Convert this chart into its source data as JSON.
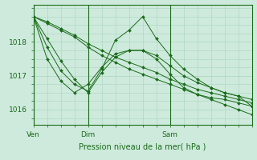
{
  "bg_color": "#ceeadc",
  "grid_color": "#aad4c0",
  "line_color": "#1a6b1a",
  "marker_color": "#1a6b1a",
  "xlabel": "Pression niveau de la mer( hPa )",
  "xlabel_color": "#1a6b1a",
  "tick_color": "#1a6b1a",
  "ylim": [
    1015.55,
    1019.1
  ],
  "yticks": [
    1016,
    1017,
    1018
  ],
  "xlim": [
    0,
    96
  ],
  "xtick_positions": [
    0,
    24,
    60
  ],
  "xtick_labels": [
    "Ven",
    "Dim",
    "Sam"
  ],
  "series": [
    [
      1018.75,
      1018.55,
      1018.35,
      1018.15,
      1017.85,
      1017.6,
      1017.4,
      1017.2,
      1017.05,
      1016.9,
      1016.75,
      1016.6,
      1016.45,
      1016.3,
      1016.15,
      1016.0,
      1015.85
    ],
    [
      1018.75,
      1018.6,
      1018.4,
      1018.2,
      1017.95,
      1017.75,
      1017.55,
      1017.4,
      1017.25,
      1017.1,
      1016.9,
      1016.75,
      1016.6,
      1016.5,
      1016.4,
      1016.3,
      1016.2
    ],
    [
      1018.75,
      1018.1,
      1017.45,
      1016.9,
      1016.5,
      1017.1,
      1017.55,
      1017.75,
      1017.75,
      1017.6,
      1017.3,
      1017.0,
      1016.8,
      1016.65,
      1016.5,
      1016.4,
      1016.3
    ],
    [
      1018.75,
      1017.85,
      1017.15,
      1016.75,
      1016.55,
      1017.2,
      1018.05,
      1018.35,
      1018.75,
      1018.1,
      1017.6,
      1017.2,
      1016.9,
      1016.65,
      1016.5,
      1016.4,
      1016.1
    ],
    [
      1018.75,
      1017.5,
      1016.85,
      1016.5,
      1016.75,
      1017.25,
      1017.65,
      1017.75,
      1017.75,
      1017.5,
      1017.05,
      1016.65,
      1016.45,
      1016.35,
      1016.3,
      1016.2,
      1016.1
    ]
  ]
}
